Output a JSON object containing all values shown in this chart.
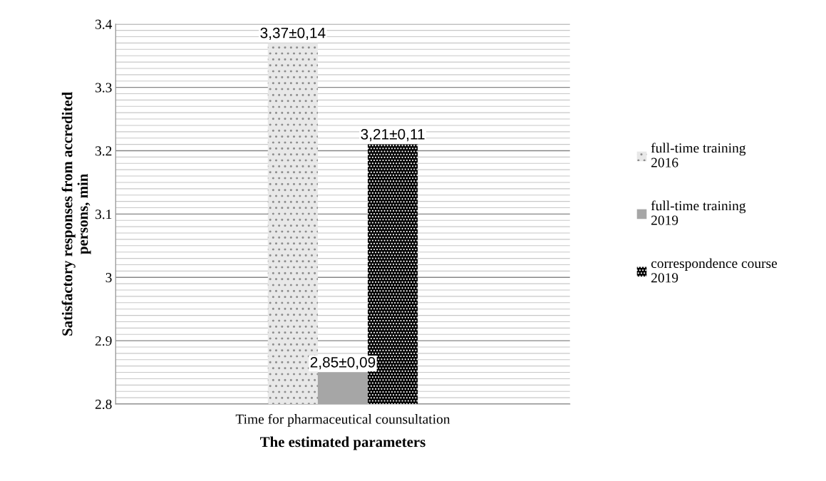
{
  "chart_data": {
    "type": "bar",
    "xlabel": "The estimated parameters",
    "ylabel": "Satisfactory responses from accredited persons, min",
    "categories": [
      "Time for pharmaceutical counsultation"
    ],
    "series": [
      {
        "name": "full-time training 2016",
        "color": "#e8e8e8",
        "values": [
          3.37
        ],
        "value_labels": [
          "3,37±0,14"
        ]
      },
      {
        "name": "full-time training 2019",
        "color": "#a6a6a6",
        "values": [
          2.85
        ],
        "value_labels": [
          "2,85±0,09"
        ]
      },
      {
        "name": "correspondence course 2019",
        "color": "#000000",
        "values": [
          3.21
        ],
        "value_labels": [
          "3,21±0,11"
        ]
      }
    ],
    "ylim": [
      2.8,
      3.4
    ],
    "yticks": [
      2.8,
      2.9,
      {
        "value": 3.0,
        "label": "3"
      },
      3.1,
      3.2,
      3.3,
      3.4
    ],
    "grid": "y",
    "legend": "right"
  }
}
